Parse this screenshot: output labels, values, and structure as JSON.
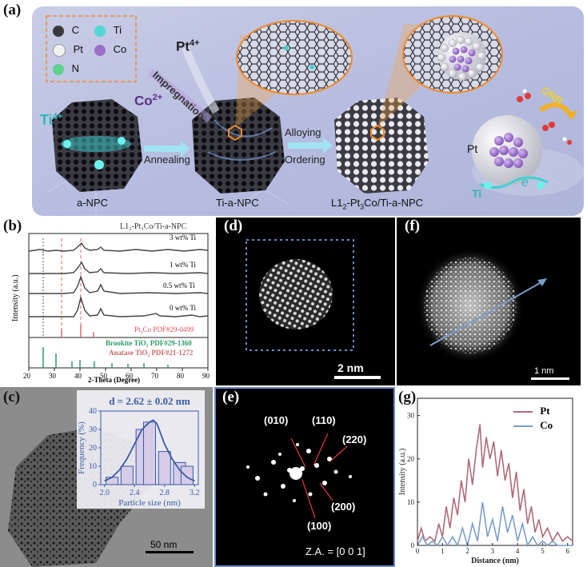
{
  "figure": {
    "a": {
      "label": "(a)",
      "legend": [
        {
          "symbol": "C",
          "color": "#3a3a3a"
        },
        {
          "symbol": "Ti",
          "color": "#4fd8d6"
        },
        {
          "symbol": "Pt",
          "color": "#f2f2f2"
        },
        {
          "symbol": "Co",
          "color": "#9b6fc7"
        },
        {
          "symbol": "N",
          "color": "#5fd18e"
        }
      ],
      "ions": {
        "ti": "Ti",
        "ti_charge": "4+",
        "co": "Co",
        "co_charge": "2+",
        "pt": "Pt",
        "pt_charge": "4+"
      },
      "steps": {
        "annealing": "Annealing",
        "impregnation": "Impregnation",
        "alloying": "Alloying",
        "ordering": "Ordering",
        "orr": "ORR"
      },
      "samples": {
        "s1": "a-NPC",
        "s2": "Ti-a-NPC",
        "s3_prefix": "L1",
        "s3_sub": "2",
        "s3_mid": "-Pt",
        "s3_sub2": "3",
        "s3_suffix": "Co/Ti-a-NPC"
      },
      "zoom_labels": {
        "pt": "Pt",
        "ti": "Ti",
        "e": "e"
      }
    },
    "b": {
      "label": "(b)",
      "title": "L1₂-Pt₃Co/Ti-a-NPC",
      "ylabel": "Intensity (a.u.)",
      "xlabel": "2-Theta (Degree)",
      "curves": [
        "3 wt% Ti",
        "1 wt% Ti",
        "0.5 wt% Ti",
        "0 wt% Ti"
      ],
      "refs": [
        {
          "name": "Pt₃Co PDF#29-0499",
          "color": "#e0505a"
        },
        {
          "name": "Brookite TiO₂ PDF#29-1360",
          "color": "#2a9a6a"
        },
        {
          "name": "Anatase TiO₂ PDF#21-1272",
          "color": "#c96a6a"
        }
      ],
      "xticks": [
        "20",
        "30",
        "40",
        "50",
        "60",
        "70",
        "80",
        "90"
      ]
    },
    "c": {
      "label": "(c)",
      "inset_title": "d = 2.62 ± 0.02 nm",
      "scalebar": "50 nm"
    },
    "d": {
      "label": "(d)",
      "scalebar": "2 nm"
    },
    "e": {
      "label": "(e)",
      "spots": [
        "(010)",
        "(110)",
        "(220)",
        "(200)",
        "(100)"
      ],
      "zone_axis": "Z.A. = [0 0 1]"
    },
    "f": {
      "label": "(f)",
      "scalebar": "1 nm"
    },
    "g": {
      "label": "(g)",
      "legend": [
        {
          "name": "Pt",
          "color": "#b06a7a"
        },
        {
          "name": "Co",
          "color": "#7a9ec8"
        }
      ]
    }
  },
  "chart_data": [
    {
      "type": "bar",
      "title": "d = 2.62 ± 0.02 nm",
      "xlabel": "Particle size (nm)",
      "ylabel": "Frequency (%)",
      "categories": [
        "2.1",
        "2.3",
        "2.5",
        "2.6",
        "2.8",
        "3.0",
        "3.1"
      ],
      "values": [
        4,
        10,
        30,
        34,
        18,
        12,
        10
      ],
      "fit_x": [
        2.0,
        2.1,
        2.2,
        2.3,
        2.4,
        2.5,
        2.6,
        2.65,
        2.7,
        2.8,
        2.9,
        3.0,
        3.1,
        3.2
      ],
      "fit_y": [
        2,
        4,
        8,
        14,
        22,
        30,
        34,
        35,
        33,
        22,
        14,
        8,
        4,
        2
      ],
      "xticks": [
        "2.0",
        "2.4",
        "2.8",
        "3.2"
      ],
      "yticks": [
        "0",
        "10",
        "20",
        "30",
        "40"
      ],
      "xlim": [
        1.95,
        3.25
      ],
      "ylim": [
        0,
        40
      ]
    },
    {
      "type": "line",
      "xlabel": "Distance (nm)",
      "ylabel": "Intensity (a.u.)",
      "xlim": [
        0,
        6.2
      ],
      "ylim": [
        0,
        34
      ],
      "xticks": [
        "0",
        "1",
        "2",
        "3",
        "4",
        "5",
        "6"
      ],
      "yticks": [
        "0",
        "10",
        "20",
        "30"
      ],
      "series": [
        {
          "name": "Pt",
          "color": "#b06a7a",
          "x": [
            0,
            0.15,
            0.3,
            0.5,
            0.7,
            0.85,
            1.0,
            1.15,
            1.3,
            1.45,
            1.6,
            1.75,
            1.9,
            2.05,
            2.2,
            2.35,
            2.5,
            2.6,
            2.75,
            2.9,
            3.05,
            3.2,
            3.35,
            3.5,
            3.65,
            3.8,
            3.95,
            4.1,
            4.25,
            4.4,
            4.55,
            4.7,
            4.85,
            5.0,
            5.2,
            5.4,
            5.6,
            5.8,
            6.0,
            6.2
          ],
          "y": [
            1,
            4,
            1,
            2,
            1,
            5,
            2,
            9,
            4,
            11,
            7,
            15,
            10,
            20,
            14,
            22,
            28,
            18,
            25,
            20,
            24,
            16,
            22,
            15,
            19,
            11,
            17,
            8,
            13,
            5,
            9,
            3,
            6,
            2,
            4,
            1,
            3,
            1,
            2,
            1
          ]
        },
        {
          "name": "Co",
          "color": "#7a9ec8",
          "x": [
            0,
            0.2,
            0.4,
            0.6,
            0.8,
            1.0,
            1.2,
            1.4,
            1.6,
            1.8,
            2.0,
            2.2,
            2.4,
            2.6,
            2.8,
            3.0,
            3.2,
            3.4,
            3.6,
            3.8,
            4.0,
            4.2,
            4.4,
            4.6,
            4.8,
            5.0,
            5.2,
            5.4,
            5.6,
            5.8,
            6.0,
            6.2
          ],
          "y": [
            0,
            2,
            0,
            1,
            0,
            2,
            0,
            2,
            0,
            4,
            0,
            5,
            1,
            10,
            2,
            6,
            1,
            9,
            3,
            7,
            1,
            5,
            0,
            2,
            0,
            1,
            0,
            1,
            0,
            0,
            0,
            0
          ]
        }
      ]
    }
  ]
}
